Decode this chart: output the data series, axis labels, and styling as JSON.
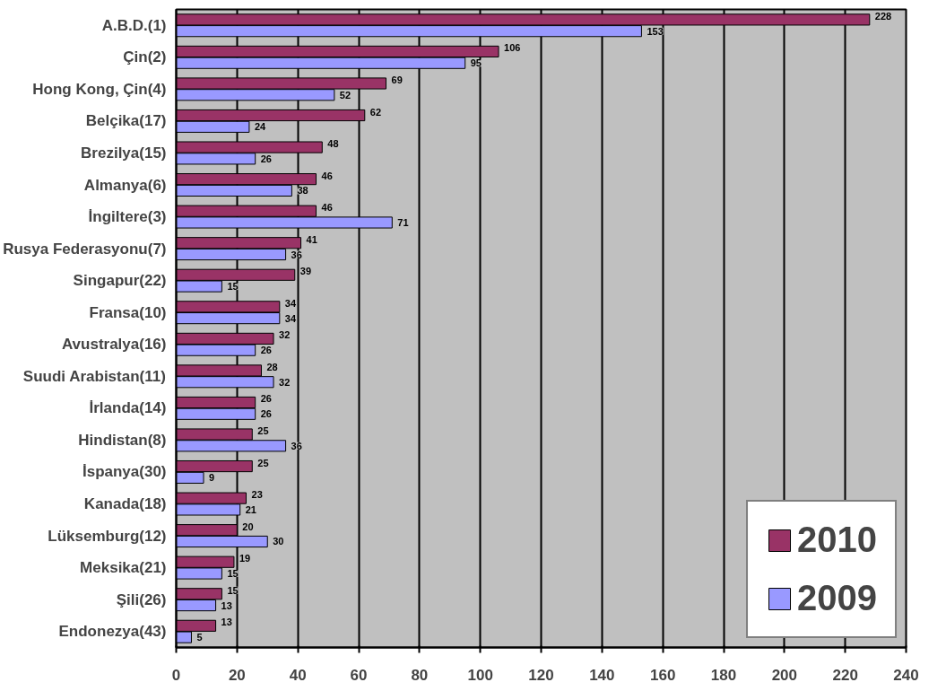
{
  "chart_data": {
    "type": "bar",
    "orientation": "horizontal",
    "categories": [
      "A.B.D.(1)",
      "Çin(2)",
      "Hong Kong, Çin(4)",
      "Belçika(17)",
      "Brezilya(15)",
      "Almanya(6)",
      "İngiltere(3)",
      "Rusya Federasyonu(7)",
      "Singapur(22)",
      "Fransa(10)",
      "Avustralya(16)",
      "Suudi Arabistan(11)",
      "İrlanda(14)",
      "Hindistan(8)",
      "İspanya(30)",
      "Kanada(18)",
      "Lüksemburg(12)",
      "Meksika(21)",
      "Şili(26)",
      "Endonezya(43)"
    ],
    "series": [
      {
        "name": "2010",
        "color": "#993366",
        "values": [
          228,
          106,
          69,
          62,
          48,
          46,
          46,
          41,
          39,
          34,
          32,
          28,
          26,
          25,
          25,
          23,
          20,
          19,
          15,
          13
        ]
      },
      {
        "name": "2009",
        "color": "#9999ff",
        "values": [
          153,
          95,
          52,
          24,
          26,
          38,
          71,
          36,
          15,
          34,
          26,
          32,
          26,
          36,
          9,
          21,
          30,
          15,
          13,
          5
        ]
      }
    ],
    "xlim": [
      0,
      240
    ],
    "xticks": [
      0,
      20,
      40,
      60,
      80,
      100,
      120,
      140,
      160,
      180,
      200,
      220,
      240
    ],
    "grid": "x",
    "legend": "bottom right",
    "data_labels": true
  }
}
